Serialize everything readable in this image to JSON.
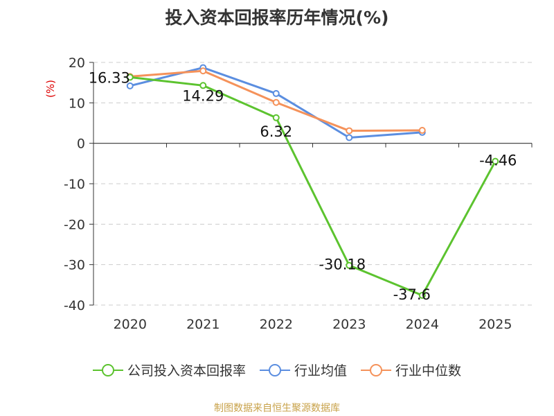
{
  "chart_data": {
    "type": "line",
    "title": "投入资本回报率历年情况(%)",
    "ylabel": "(%)",
    "xlabel": "",
    "categories": [
      "2020",
      "2021",
      "2022",
      "2023",
      "2024",
      "2025"
    ],
    "ylim": [
      -40,
      20
    ],
    "yticks": [
      20,
      10,
      0,
      -10,
      -20,
      -30,
      -40
    ],
    "grid": true,
    "legend_position": "bottom",
    "series": [
      {
        "name": "公司投入资本回报率",
        "color": "#5cc32f",
        "values": [
          16.33,
          14.29,
          6.32,
          -30.18,
          -37.6,
          -4.46
        ],
        "labels": [
          "16.33",
          "14.29",
          "6.32",
          "-30.18",
          "-37.6",
          "-4.46"
        ]
      },
      {
        "name": "行业均值",
        "color": "#5b8ee0",
        "values": [
          14.2,
          18.7,
          12.3,
          1.4,
          2.7,
          null
        ]
      },
      {
        "name": "行业中位数",
        "color": "#f5925a",
        "values": [
          16.5,
          17.9,
          10.1,
          3.1,
          3.2,
          null
        ]
      }
    ],
    "source": "制图数据来自恒生聚源数据库"
  }
}
